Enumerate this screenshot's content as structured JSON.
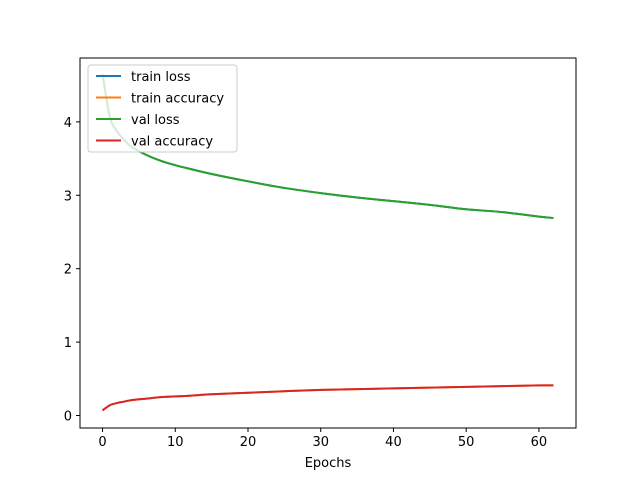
{
  "chart_data": {
    "type": "line",
    "title": "",
    "xlabel": "Epochs",
    "ylabel": "",
    "xlim": [
      -3.1,
      65.1
    ],
    "ylim": [
      -0.17,
      4.87
    ],
    "xticks": [
      0,
      10,
      20,
      30,
      40,
      50,
      60
    ],
    "yticks": [
      0,
      1,
      2,
      3,
      4
    ],
    "grid": false,
    "legend": {
      "position": "top-left"
    },
    "x_range": [
      0,
      62
    ],
    "series": [
      {
        "name": "train loss",
        "color": "#1f77b4",
        "x": [
          0,
          1,
          2,
          3,
          4,
          6,
          8,
          10,
          12,
          15,
          20,
          25,
          30,
          35,
          40,
          45,
          50,
          55,
          60,
          62
        ],
        "values": [
          4.65,
          4.07,
          3.87,
          3.75,
          3.66,
          3.55,
          3.47,
          3.41,
          3.36,
          3.29,
          3.19,
          3.1,
          3.03,
          2.97,
          2.92,
          2.87,
          2.81,
          2.77,
          2.71,
          2.69
        ]
      },
      {
        "name": "train accuracy",
        "color": "#ff7f0e",
        "x": [
          0,
          1,
          2,
          3,
          4,
          6,
          8,
          10,
          12,
          15,
          20,
          25,
          30,
          35,
          40,
          45,
          50,
          55,
          60,
          62
        ],
        "values": [
          0.07,
          0.14,
          0.17,
          0.19,
          0.21,
          0.23,
          0.25,
          0.26,
          0.27,
          0.29,
          0.31,
          0.33,
          0.35,
          0.36,
          0.37,
          0.38,
          0.39,
          0.4,
          0.41,
          0.41
        ]
      },
      {
        "name": "val loss",
        "color": "#2ca02c",
        "x": [
          0,
          1,
          2,
          3,
          4,
          6,
          8,
          10,
          12,
          15,
          20,
          25,
          30,
          35,
          40,
          45,
          50,
          55,
          60,
          62
        ],
        "values": [
          4.65,
          4.07,
          3.87,
          3.75,
          3.66,
          3.55,
          3.47,
          3.41,
          3.36,
          3.29,
          3.19,
          3.1,
          3.03,
          2.97,
          2.92,
          2.87,
          2.81,
          2.77,
          2.71,
          2.69
        ]
      },
      {
        "name": "val accuracy",
        "color": "#d62728",
        "x": [
          0,
          1,
          2,
          3,
          4,
          6,
          8,
          10,
          12,
          15,
          20,
          25,
          30,
          35,
          40,
          45,
          50,
          55,
          60,
          62
        ],
        "values": [
          0.07,
          0.14,
          0.17,
          0.19,
          0.21,
          0.23,
          0.25,
          0.26,
          0.27,
          0.29,
          0.31,
          0.33,
          0.35,
          0.36,
          0.37,
          0.38,
          0.39,
          0.4,
          0.41,
          0.41
        ]
      }
    ]
  }
}
